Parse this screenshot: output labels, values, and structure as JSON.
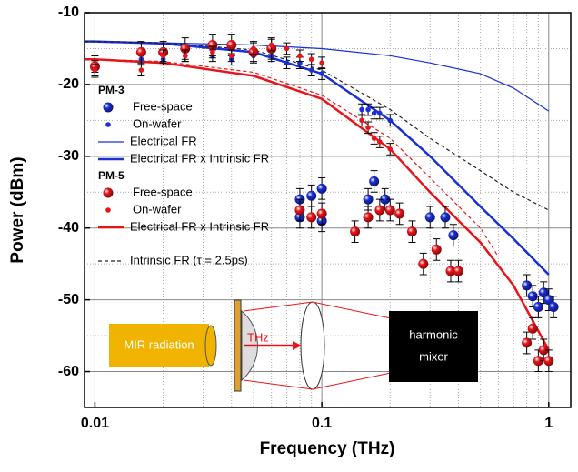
{
  "chart_data": {
    "type": "scatter",
    "x_label": "Frequency  (THz)",
    "y_label": "Power  (dBm)",
    "log_x": true,
    "grid": true,
    "xlim": [
      0.009,
      1.25
    ],
    "ylim": [
      -65,
      -10
    ],
    "xticks": [
      0.01,
      0.1,
      1
    ],
    "yticks": [
      -10,
      -20,
      -30,
      -40,
      -50,
      -60
    ],
    "xminorticks": [
      0.02,
      0.03,
      0.04,
      0.05,
      0.06,
      0.07,
      0.08,
      0.09,
      0.2,
      0.3,
      0.4,
      0.5,
      0.6,
      0.7,
      0.8,
      0.9
    ],
    "yminorticks": [
      -15,
      -25,
      -35,
      -45,
      -55
    ],
    "legend_groups": [
      "PM-3",
      "PM-5"
    ],
    "series": [
      {
        "name": "Free-space",
        "group": "PM-3",
        "kind": "points",
        "marker": "large",
        "color": "#1a2fd6",
        "error": 1.5,
        "x": [
          0.01,
          0.08,
          0.08,
          0.09,
          0.1,
          0.1,
          0.16,
          0.17,
          0.19,
          0.3,
          0.35,
          0.38,
          0.8,
          0.85,
          0.9,
          0.95,
          1.0,
          1.05
        ],
        "values": [
          -17.5,
          -38.5,
          -36,
          -35.5,
          -34.5,
          -39,
          -36,
          -33.5,
          -36,
          -38.5,
          -38.5,
          -41,
          -48,
          -49.5,
          -51,
          -49,
          -50,
          -51
        ]
      },
      {
        "name": "On-wafer",
        "group": "PM-3",
        "kind": "points",
        "marker": "small",
        "color": "#1a2fd6",
        "error": 0.8,
        "x": [
          0.01,
          0.016,
          0.02,
          0.025,
          0.033,
          0.04,
          0.05,
          0.06,
          0.07,
          0.08,
          0.09,
          0.1,
          0.15,
          0.16,
          0.17,
          0.18,
          0.2
        ],
        "values": [
          -17.5,
          -16.5,
          -16.5,
          -16,
          -16,
          -16.5,
          -16,
          -16,
          -17,
          -17,
          -18,
          -18.5,
          -23.5,
          -23.5,
          -24,
          -24,
          -25
        ]
      },
      {
        "name": "Electrical FR",
        "group": "PM-3",
        "kind": "line",
        "width": 1.2,
        "dash": false,
        "color": "#1a2fd6",
        "x": [
          0.009,
          0.01,
          0.02,
          0.05,
          0.1,
          0.2,
          0.3,
          0.5,
          0.7,
          1.0
        ],
        "values": [
          -14,
          -14,
          -14.2,
          -14.5,
          -15,
          -16,
          -17,
          -18.5,
          -20.5,
          -23.7
        ]
      },
      {
        "name": "Electrical FR x Intrinsic FR",
        "group": "PM-3",
        "kind": "line",
        "width": 2.5,
        "dash": false,
        "color": "#1a2fd6",
        "x": [
          0.009,
          0.01,
          0.02,
          0.05,
          0.1,
          0.2,
          0.3,
          0.5,
          0.7,
          1.0
        ],
        "values": [
          -14,
          -14,
          -14.3,
          -15.5,
          -18.5,
          -25,
          -30,
          -37,
          -41.5,
          -46.5
        ]
      },
      {
        "name": "Free-space",
        "group": "PM-5",
        "kind": "points",
        "marker": "large",
        "color": "#e8141a",
        "error": 1.5,
        "x": [
          0.01,
          0.016,
          0.02,
          0.025,
          0.033,
          0.04,
          0.05,
          0.06,
          0.08,
          0.09,
          0.1,
          0.14,
          0.16,
          0.18,
          0.2,
          0.22,
          0.25,
          0.28,
          0.32,
          0.37,
          0.4,
          0.8,
          0.85,
          0.9,
          0.95,
          1.0
        ],
        "values": [
          -17.5,
          -15.5,
          -15.5,
          -15,
          -14.5,
          -14.5,
          -15.5,
          -15,
          -37.5,
          -38.5,
          -38,
          -40.5,
          -38.5,
          -37.5,
          -37.5,
          -38,
          -40.5,
          -45,
          -43,
          -46,
          -46,
          -56,
          -54,
          -58.5,
          -57,
          -58.5
        ]
      },
      {
        "name": "On-wafer",
        "group": "PM-5",
        "kind": "points",
        "marker": "small",
        "color": "#e8141a",
        "error": 0.8,
        "x": [
          0.01,
          0.016,
          0.02,
          0.025,
          0.033,
          0.04,
          0.05,
          0.06,
          0.07,
          0.08,
          0.09,
          0.1,
          0.15,
          0.16,
          0.17,
          0.18,
          0.2
        ],
        "values": [
          -18,
          -18,
          -16,
          -16,
          -15.5,
          -16,
          -15,
          -14.5,
          -15,
          -16,
          -16.5,
          -17,
          -25,
          -26,
          -27.5,
          -28,
          -29
        ]
      },
      {
        "name": "Electrical FR x Intrinsic FR",
        "group": "PM-5",
        "kind": "line",
        "width": 2.5,
        "dash": false,
        "color": "#e8141a",
        "x": [
          0.009,
          0.01,
          0.02,
          0.05,
          0.1,
          0.2,
          0.3,
          0.5,
          0.7,
          1.0
        ],
        "values": [
          -16.5,
          -16.5,
          -17,
          -18.8,
          -22,
          -29,
          -35,
          -42,
          -48,
          -57
        ]
      },
      {
        "name": "Electrical FR x Intrinsic FR",
        "kind": "line",
        "width": 1.2,
        "dash": true,
        "color": "#e8141a",
        "legend": false,
        "x": [
          0.009,
          0.01,
          0.02,
          0.05,
          0.1,
          0.2,
          0.3,
          0.5,
          0.6
        ],
        "values": [
          -16.5,
          -16.5,
          -16.8,
          -18.3,
          -21.5,
          -27.5,
          -33,
          -40,
          -44
        ]
      },
      {
        "name": "Intrinsic FR (τ = 2.5ps)",
        "kind": "line",
        "width": 1.2,
        "dash": true,
        "color": "#222222",
        "x": [
          0.009,
          0.01,
          0.02,
          0.05,
          0.1,
          0.2,
          0.3,
          0.5,
          0.7,
          1.0
        ],
        "values": [
          -14,
          -14,
          -14.2,
          -15.2,
          -18,
          -23.5,
          -27.5,
          -32,
          -35,
          -37.5
        ]
      }
    ],
    "annotations": {
      "source": "MIR radiation",
      "signal": "THz",
      "detector": [
        "harmonic",
        "mixer"
      ]
    }
  }
}
